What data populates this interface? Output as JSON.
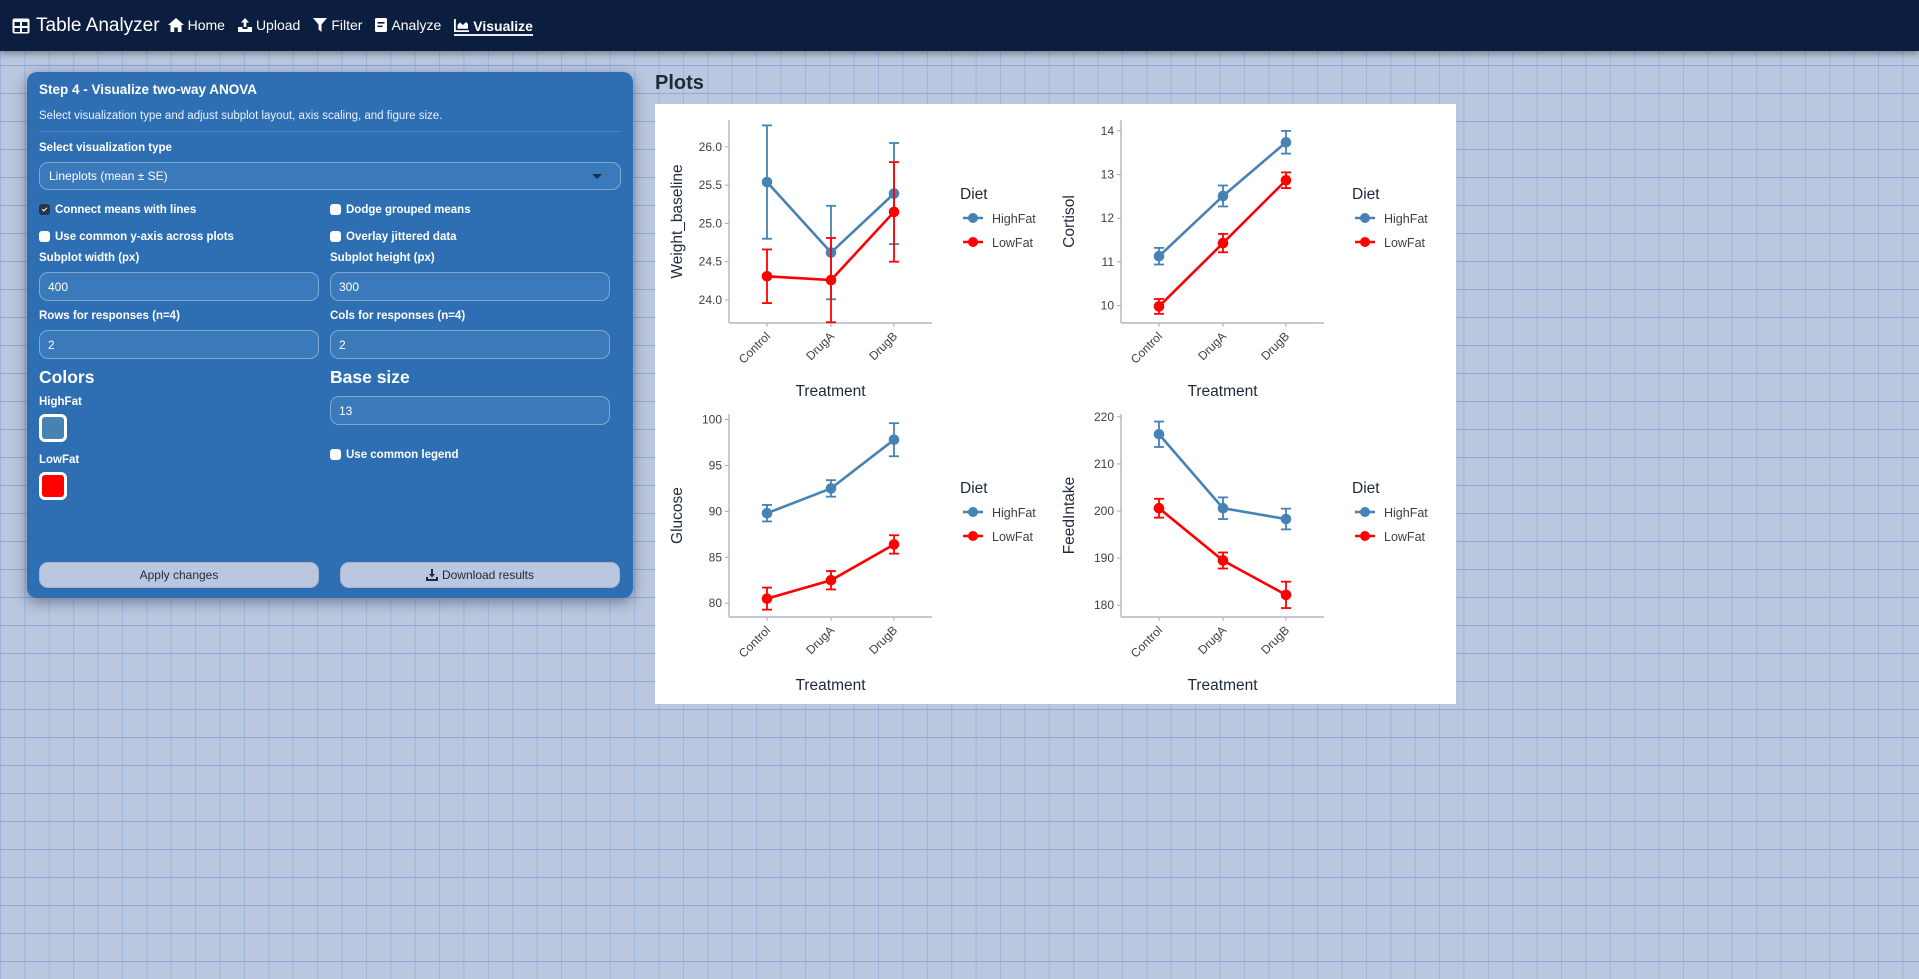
{
  "navbar": {
    "brand": "Table Analyzer",
    "items": [
      {
        "label": "Home",
        "icon": "home-icon",
        "active": false
      },
      {
        "label": "Upload",
        "icon": "upload-icon",
        "active": false
      },
      {
        "label": "Filter",
        "icon": "filter-icon",
        "active": false
      },
      {
        "label": "Analyze",
        "icon": "analyze-icon",
        "active": false
      },
      {
        "label": "Visualize",
        "icon": "chart-area-icon",
        "active": true
      }
    ]
  },
  "panel": {
    "title": "Step 4 - Visualize two-way ANOVA",
    "subtitle": "Select visualization type and adjust subplot layout, axis scaling, and figure size.",
    "viz_type_label": "Select visualization type",
    "viz_type_value": "Lineplots (mean ± SE)",
    "checkboxes": {
      "connect_means": {
        "label": "Connect means with lines",
        "checked": true
      },
      "dodge_means": {
        "label": "Dodge grouped means",
        "checked": false
      },
      "common_y": {
        "label": "Use common y-axis across plots",
        "checked": false
      },
      "overlay_jitter": {
        "label": "Overlay jittered data",
        "checked": false
      },
      "common_legend": {
        "label": "Use common legend",
        "checked": false
      }
    },
    "subplot_width_label": "Subplot width (px)",
    "subplot_width": "400",
    "subplot_height_label": "Subplot height (px)",
    "subplot_height": "300",
    "rows_label": "Rows for responses (n=4)",
    "rows": "2",
    "cols_label": "Cols for responses (n=4)",
    "cols": "2",
    "colors_heading": "Colors",
    "base_size_heading": "Base size",
    "base_size": "13",
    "colors": [
      {
        "label": "HighFat",
        "hex": "#4682b4"
      },
      {
        "label": "LowFat",
        "hex": "#ff0000"
      }
    ],
    "apply_label": "Apply changes",
    "download_label": "Download results"
  },
  "plots": {
    "title": "Plots"
  },
  "chart_data": [
    {
      "type": "line",
      "title": "",
      "xlabel": "Treatment",
      "ylabel": "Weight_baseline",
      "categories": [
        "Control",
        "DrugA",
        "DrugB"
      ],
      "yticks": [
        24.0,
        24.5,
        25.0,
        25.5,
        26.0
      ],
      "ylim": [
        23.7,
        26.35
      ],
      "legend_title": "Diet",
      "series": [
        {
          "name": "HighFat",
          "color": "#4682b4",
          "values": [
            25.54,
            24.62,
            25.39
          ],
          "se": [
            0.74,
            0.61,
            0.66
          ]
        },
        {
          "name": "LowFat",
          "color": "#ff0000",
          "values": [
            24.31,
            24.26,
            25.15
          ],
          "se": [
            0.35,
            0.55,
            0.65
          ]
        }
      ]
    },
    {
      "type": "line",
      "title": "",
      "xlabel": "Treatment",
      "ylabel": "Cortisol",
      "categories": [
        "Control",
        "DrugA",
        "DrugB"
      ],
      "yticks": [
        10,
        11,
        12,
        13,
        14
      ],
      "ylim": [
        9.6,
        14.25
      ],
      "legend_title": "Diet",
      "series": [
        {
          "name": "HighFat",
          "color": "#4682b4",
          "values": [
            11.13,
            12.51,
            13.74
          ],
          "se": [
            0.19,
            0.24,
            0.26
          ]
        },
        {
          "name": "LowFat",
          "color": "#ff0000",
          "values": [
            9.98,
            11.43,
            12.87
          ],
          "se": [
            0.17,
            0.21,
            0.18
          ]
        }
      ]
    },
    {
      "type": "line",
      "title": "",
      "xlabel": "Treatment",
      "ylabel": "Glucose",
      "categories": [
        "Control",
        "DrugA",
        "DrugB"
      ],
      "yticks": [
        80,
        85,
        90,
        95,
        100
      ],
      "ylim": [
        78.5,
        100.6
      ],
      "legend_title": "Diet",
      "series": [
        {
          "name": "HighFat",
          "color": "#4682b4",
          "values": [
            89.8,
            92.5,
            97.8
          ],
          "se": [
            0.9,
            0.9,
            1.8
          ]
        },
        {
          "name": "LowFat",
          "color": "#ff0000",
          "values": [
            80.5,
            82.5,
            86.4
          ],
          "se": [
            1.2,
            1.0,
            1.0
          ]
        }
      ]
    },
    {
      "type": "line",
      "title": "",
      "xlabel": "Treatment",
      "ylabel": "FeedIntake",
      "categories": [
        "Control",
        "DrugA",
        "DrugB"
      ],
      "yticks": [
        180,
        190,
        200,
        210,
        220
      ],
      "ylim": [
        177.5,
        220.6
      ],
      "legend_title": "Diet",
      "series": [
        {
          "name": "HighFat",
          "color": "#4682b4",
          "values": [
            216.3,
            200.6,
            198.3
          ],
          "se": [
            2.7,
            2.3,
            2.2
          ]
        },
        {
          "name": "LowFat",
          "color": "#ff0000",
          "values": [
            200.6,
            189.5,
            182.2
          ],
          "se": [
            2.0,
            1.7,
            2.8
          ]
        }
      ]
    }
  ]
}
